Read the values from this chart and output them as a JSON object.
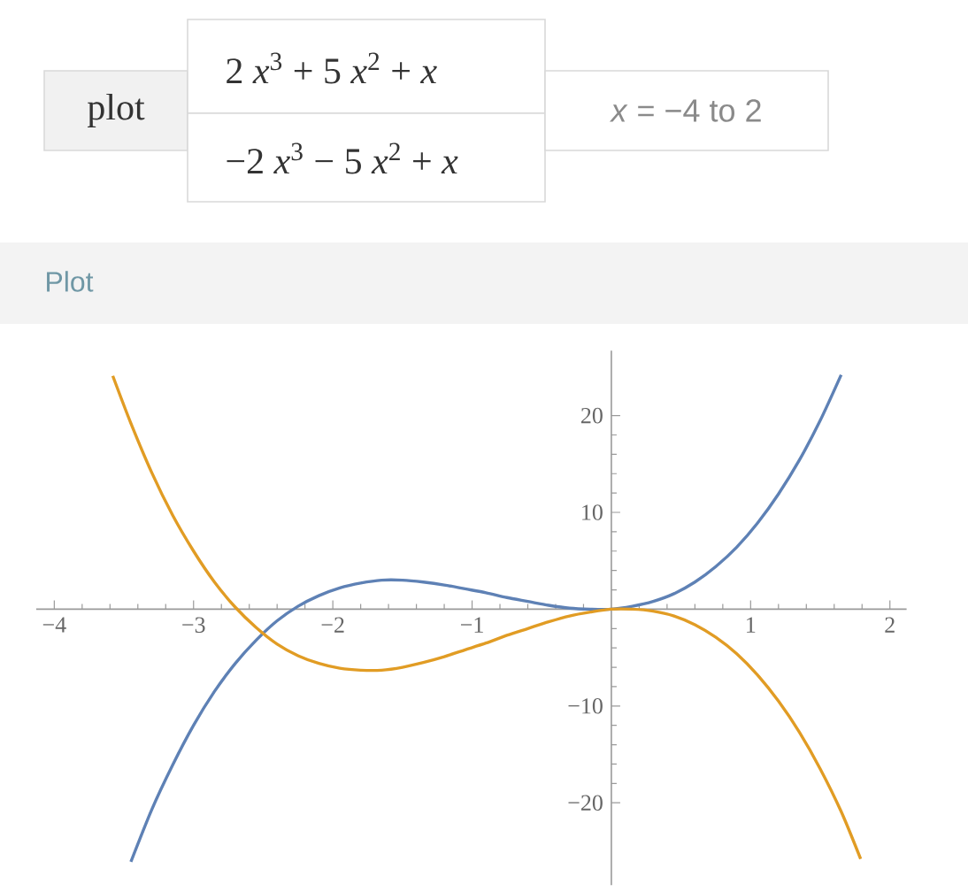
{
  "chart_data": {
    "type": "line",
    "title": "Plot",
    "annotations": [
      "plot",
      "2 *x*$^{3}$ + 5 *x*$^{2}$ + *x*",
      "−2 *x*$^{3}$ − 5 *x*$^{2}$ + *x*",
      "*x* = −4 to 2"
    ],
    "xlim": [
      -4.13,
      2.12
    ],
    "ylim": [
      -28.5,
      26.7
    ],
    "xticks": [
      {
        "value": -4,
        "label": "−4"
      },
      {
        "value": -3,
        "label": "−3"
      },
      {
        "value": -2,
        "label": "−2"
      },
      {
        "value": -1,
        "label": "−1"
      },
      {
        "value": 0,
        "label": null
      },
      1,
      2
    ],
    "yticks": [
      {
        "value": -20,
        "label": "−20"
      },
      {
        "value": -10,
        "label": "−10"
      },
      {
        "value": 0,
        "label": null
      },
      10,
      20
    ],
    "series": [
      {
        "color": "#5e81b5",
        "x": [
          -3.45,
          -3.3,
          -3.15,
          -3.0,
          -2.85,
          -2.7,
          -2.55,
          -2.4,
          -2.25,
          -2.1,
          -1.95,
          -1.8,
          -1.65,
          -1.5,
          -1.35,
          -1.2,
          -1.05,
          -0.9,
          -0.75,
          -0.6,
          -0.45,
          -0.3,
          -0.15,
          0,
          0.15,
          0.3,
          0.45,
          0.6,
          0.75,
          0.9,
          1.05,
          1.2,
          1.35,
          1.5,
          1.65
        ],
        "values": [
          -26.1,
          -20.7,
          -16.1,
          -12.0,
          -8.5,
          -5.6,
          -3.2,
          -1.2,
          0.3,
          1.4,
          2.2,
          2.7,
          3.0,
          3.0,
          2.8,
          2.5,
          2.1,
          1.7,
          1.2,
          0.8,
          0.4,
          0.1,
          0.0,
          0,
          0.3,
          0.8,
          1.6,
          2.8,
          4.4,
          6.4,
          8.9,
          11.9,
          15.4,
          19.5,
          24.2
        ]
      },
      {
        "color": "#e19c24",
        "x": [
          -3.58,
          -3.45,
          -3.3,
          -3.15,
          -3.0,
          -2.85,
          -2.7,
          -2.55,
          -2.4,
          -2.25,
          -2.1,
          -1.95,
          -1.8,
          -1.65,
          -1.5,
          -1.35,
          -1.2,
          -1.05,
          -0.9,
          -0.75,
          -0.6,
          -0.45,
          -0.3,
          -0.15,
          0,
          0.15,
          0.3,
          0.45,
          0.6,
          0.75,
          0.9,
          1.05,
          1.2,
          1.35,
          1.5,
          1.65,
          1.79
        ],
        "values": [
          24.1,
          19.2,
          14.1,
          9.7,
          6.0,
          2.8,
          0.2,
          -1.9,
          -3.6,
          -4.8,
          -5.6,
          -6.1,
          -6.3,
          -6.3,
          -6.0,
          -5.5,
          -4.9,
          -4.2,
          -3.5,
          -2.7,
          -2.0,
          -1.3,
          -0.7,
          -0.3,
          0,
          0.0,
          -0.2,
          -0.7,
          -1.6,
          -2.9,
          -4.6,
          -6.8,
          -9.5,
          -12.7,
          -16.5,
          -20.9,
          -25.8
        ]
      }
    ]
  }
}
